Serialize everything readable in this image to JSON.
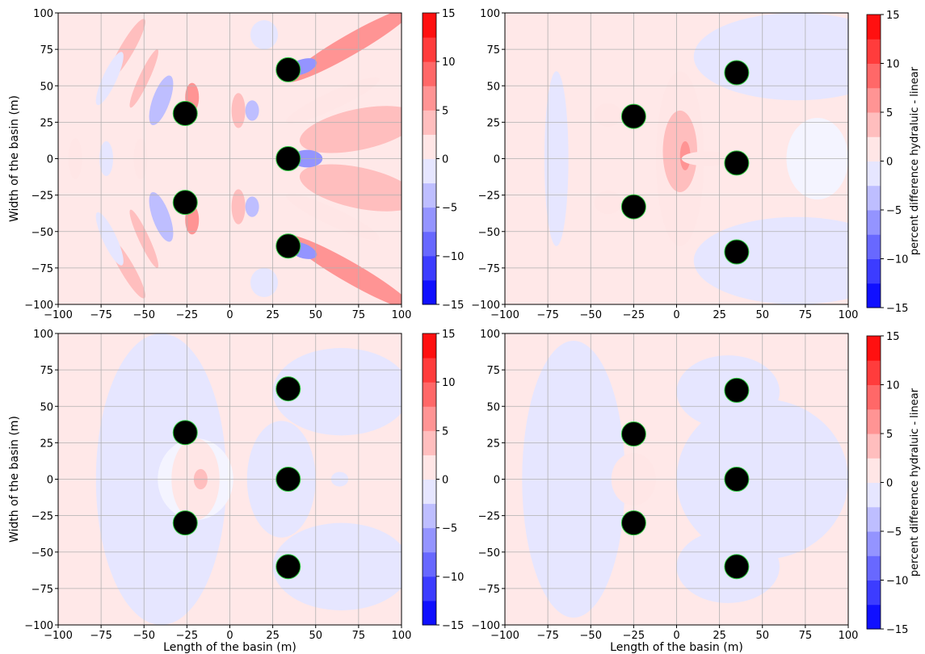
{
  "figure": {
    "colorbar_label": "percent difference hydraluic - linear"
  },
  "chart_data": [
    {
      "type": "heatmap",
      "title": "",
      "xlabel": "",
      "ylabel": "Width of the basin (m)",
      "xlim": [
        -100,
        100
      ],
      "ylim": [
        -100,
        100
      ],
      "xticks": [
        -100,
        -75,
        -50,
        -25,
        0,
        25,
        50,
        75,
        100
      ],
      "yticks": [
        -100,
        -75,
        -50,
        -25,
        0,
        25,
        50,
        75,
        100
      ],
      "grid": true,
      "colorbar_ticks": [
        -15,
        -10,
        -5,
        0,
        5,
        10,
        15
      ],
      "colorbar_label": "",
      "devices": [
        [
          -26,
          31
        ],
        [
          -26,
          -30
        ],
        [
          34,
          61
        ],
        [
          34,
          0
        ],
        [
          34,
          -60
        ]
      ],
      "features": [
        {
          "x": -60,
          "y": 75,
          "rx": 4,
          "ry": 24,
          "level": 2,
          "rot": 30
        },
        {
          "x": -60,
          "y": -75,
          "rx": 4,
          "ry": 24,
          "level": 2,
          "rot": -30
        },
        {
          "x": -50,
          "y": 55,
          "rx": 3,
          "ry": 22,
          "level": 2,
          "rot": 25
        },
        {
          "x": -50,
          "y": -55,
          "rx": 3,
          "ry": 22,
          "level": 2,
          "rot": -25
        },
        {
          "x": -90,
          "y": 0,
          "rx": 4,
          "ry": 14,
          "level": 1,
          "rot": 0
        },
        {
          "x": -52,
          "y": 0,
          "rx": 4,
          "ry": 14,
          "level": 1,
          "rot": 0
        },
        {
          "x": -70,
          "y": 55,
          "rx": 4,
          "ry": 20,
          "level": -1,
          "rot": 25
        },
        {
          "x": -70,
          "y": -55,
          "rx": 4,
          "ry": 20,
          "level": -1,
          "rot": -25
        },
        {
          "x": -72,
          "y": 0,
          "rx": 4,
          "ry": 12,
          "level": -1,
          "rot": 0
        },
        {
          "x": -40,
          "y": 40,
          "rx": 5,
          "ry": 18,
          "level": -2,
          "rot": 20
        },
        {
          "x": -40,
          "y": -40,
          "rx": 5,
          "ry": 18,
          "level": -2,
          "rot": -20
        },
        {
          "x": -22,
          "y": 42,
          "rx": 4,
          "ry": 10,
          "level": 3,
          "rot": 0
        },
        {
          "x": -22,
          "y": -42,
          "rx": 4,
          "ry": 10,
          "level": 3,
          "rot": 0
        },
        {
          "x": 5,
          "y": 33,
          "rx": 4,
          "ry": 12,
          "level": 2,
          "rot": 0
        },
        {
          "x": 5,
          "y": -33,
          "rx": 4,
          "ry": 12,
          "level": 2,
          "rot": 0
        },
        {
          "x": 13,
          "y": 33,
          "rx": 4,
          "ry": 7,
          "level": -2,
          "rot": 0
        },
        {
          "x": 13,
          "y": -33,
          "rx": 4,
          "ry": 7,
          "level": -2,
          "rot": 0
        },
        {
          "x": 70,
          "y": 78,
          "rx": 42,
          "ry": 7,
          "level": 3,
          "rot": -30
        },
        {
          "x": 70,
          "y": -78,
          "rx": 42,
          "ry": 7,
          "level": 3,
          "rot": 30
        },
        {
          "x": 75,
          "y": 20,
          "rx": 35,
          "ry": 14,
          "level": 2,
          "rot": -12
        },
        {
          "x": 75,
          "y": -20,
          "rx": 35,
          "ry": 14,
          "level": 2,
          "rot": 12
        },
        {
          "x": 45,
          "y": 0,
          "rx": 9,
          "ry": 6,
          "level": -3,
          "rot": 0
        },
        {
          "x": 42,
          "y": 63,
          "rx": 9,
          "ry": 5,
          "level": -3,
          "rot": -20
        },
        {
          "x": 42,
          "y": -63,
          "rx": 9,
          "ry": 5,
          "level": -3,
          "rot": 20
        },
        {
          "x": 20,
          "y": 85,
          "rx": 8,
          "ry": 10,
          "level": -1,
          "rot": 0
        },
        {
          "x": 20,
          "y": -85,
          "rx": 8,
          "ry": 10,
          "level": -1,
          "rot": 0
        },
        {
          "x": 60,
          "y": 40,
          "rx": 30,
          "ry": 6,
          "level": 1,
          "rot": -25
        },
        {
          "x": 60,
          "y": -40,
          "rx": 30,
          "ry": 6,
          "level": 1,
          "rot": 25
        }
      ]
    },
    {
      "type": "heatmap",
      "title": "",
      "xlabel": "",
      "ylabel": "",
      "xlim": [
        -100,
        100
      ],
      "ylim": [
        -100,
        100
      ],
      "xticks": [
        -100,
        -75,
        -50,
        -25,
        0,
        25,
        50,
        75,
        100
      ],
      "yticks": [
        -100,
        -75,
        -50,
        -25,
        0,
        25,
        50,
        75,
        100
      ],
      "grid": true,
      "colorbar_ticks": [
        -15,
        -10,
        -5,
        0,
        5,
        10,
        15
      ],
      "colorbar_label": "percent difference hydraluic - linear",
      "devices": [
        [
          -25,
          29
        ],
        [
          -25,
          -33
        ],
        [
          35,
          59
        ],
        [
          35,
          -3
        ],
        [
          35,
          -64
        ]
      ],
      "features": [
        {
          "x": -70,
          "y": 0,
          "rx": 7,
          "ry": 60,
          "level": -1,
          "rot": 0
        },
        {
          "x": 70,
          "y": 70,
          "rx": 60,
          "ry": 30,
          "level": -1,
          "rot": 0
        },
        {
          "x": 70,
          "y": -70,
          "rx": 60,
          "ry": 30,
          "level": -1,
          "rot": 0
        },
        {
          "x": 82,
          "y": 0,
          "rx": 18,
          "ry": 28,
          "level": 0,
          "rot": 0
        },
        {
          "x": 2,
          "y": 0,
          "rx": 14,
          "ry": 60,
          "level": 1,
          "rot": 0
        },
        {
          "x": 2,
          "y": 5,
          "rx": 10,
          "ry": 28,
          "level": 2,
          "rot": 0
        },
        {
          "x": 5,
          "y": 2,
          "rx": 3,
          "ry": 10,
          "level": 3,
          "rot": 0
        },
        {
          "x": 18,
          "y": 0,
          "rx": 15,
          "ry": 5,
          "level": 1,
          "rot": 0
        },
        {
          "x": -40,
          "y": 30,
          "rx": 8,
          "ry": 8,
          "level": 1,
          "rot": 0
        },
        {
          "x": -40,
          "y": -30,
          "rx": 8,
          "ry": 8,
          "level": 1,
          "rot": 0
        }
      ]
    },
    {
      "type": "heatmap",
      "title": "",
      "xlabel": "Length of the basin (m)",
      "ylabel": "Width of the basin (m)",
      "xlim": [
        -100,
        100
      ],
      "ylim": [
        -100,
        100
      ],
      "xticks": [
        -100,
        -75,
        -50,
        -25,
        0,
        25,
        50,
        75,
        100
      ],
      "yticks": [
        -100,
        -75,
        -50,
        -25,
        0,
        25,
        50,
        75,
        100
      ],
      "grid": true,
      "colorbar_ticks": [
        -15,
        -10,
        -5,
        0,
        5,
        10,
        15
      ],
      "colorbar_label": "",
      "devices": [
        [
          -26,
          32
        ],
        [
          -26,
          -30
        ],
        [
          34,
          62
        ],
        [
          34,
          0
        ],
        [
          34,
          -60
        ]
      ],
      "features": [
        {
          "x": -40,
          "y": 0,
          "rx": 38,
          "ry": 100,
          "level": -1,
          "rot": 0
        },
        {
          "x": 65,
          "y": 60,
          "rx": 40,
          "ry": 30,
          "level": -1,
          "rot": 0
        },
        {
          "x": 65,
          "y": -60,
          "rx": 40,
          "ry": 30,
          "level": -1,
          "rot": 0
        },
        {
          "x": 30,
          "y": 0,
          "rx": 20,
          "ry": 40,
          "level": -1,
          "rot": 0
        },
        {
          "x": 64,
          "y": 0,
          "rx": 5,
          "ry": 5,
          "level": -1,
          "rot": 0
        },
        {
          "x": -20,
          "y": 0,
          "rx": 22,
          "ry": 28,
          "level": 0,
          "rot": 0
        },
        {
          "x": -20,
          "y": 0,
          "rx": 14,
          "ry": 28,
          "level": 1,
          "rot": 0
        },
        {
          "x": -17,
          "y": 0,
          "rx": 4,
          "ry": 7,
          "level": 2,
          "rot": 0
        }
      ]
    },
    {
      "type": "heatmap",
      "title": "",
      "xlabel": "Length of the basin (m)",
      "ylabel": "",
      "xlim": [
        -100,
        100
      ],
      "ylim": [
        -100,
        100
      ],
      "xticks": [
        -100,
        -75,
        -50,
        -25,
        0,
        25,
        50,
        75,
        100
      ],
      "yticks": [
        -100,
        -75,
        -50,
        -25,
        0,
        25,
        50,
        75,
        100
      ],
      "grid": true,
      "colorbar_ticks": [
        -15,
        -10,
        -5,
        0,
        5,
        10,
        15
      ],
      "colorbar_label": "percent difference hydraluic - linear",
      "devices": [
        [
          -25,
          31
        ],
        [
          -25,
          -30
        ],
        [
          35,
          61
        ],
        [
          35,
          0
        ],
        [
          35,
          -60
        ]
      ],
      "features": [
        {
          "x": -60,
          "y": 0,
          "rx": 30,
          "ry": 95,
          "level": -1,
          "rot": 0
        },
        {
          "x": 50,
          "y": 0,
          "rx": 50,
          "ry": 55,
          "level": -1,
          "rot": 0
        },
        {
          "x": 30,
          "y": 60,
          "rx": 30,
          "ry": 25,
          "level": -1,
          "rot": 0
        },
        {
          "x": 30,
          "y": -60,
          "rx": 30,
          "ry": 25,
          "level": -1,
          "rot": 0
        },
        {
          "x": -25,
          "y": 0,
          "rx": 13,
          "ry": 18,
          "level": 1,
          "rot": 0
        }
      ]
    }
  ]
}
